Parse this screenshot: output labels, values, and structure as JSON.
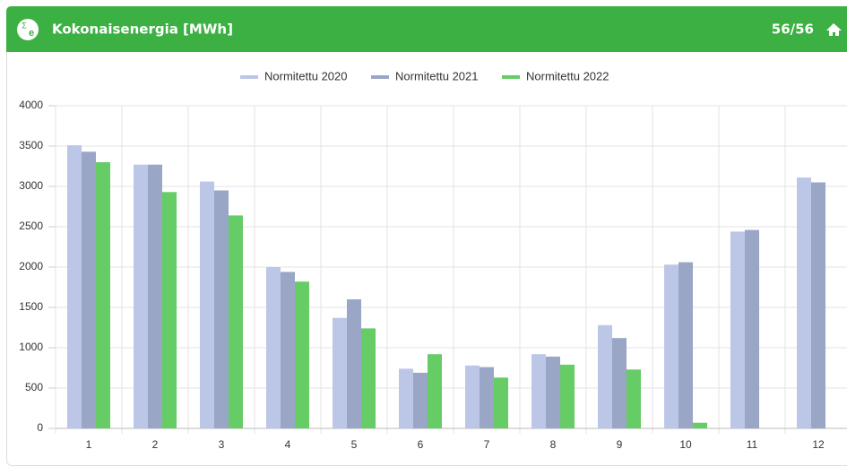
{
  "header": {
    "icon": {
      "symbol": "Σ",
      "sub": "e"
    },
    "title": "Kokonaisenergia [MWh]",
    "page": "56/56"
  },
  "chart_data": {
    "type": "bar",
    "categories": [
      "1",
      "2",
      "3",
      "4",
      "5",
      "6",
      "7",
      "8",
      "9",
      "10",
      "11",
      "12"
    ],
    "series": [
      {
        "name": "Normitettu 2020",
        "color": "#bcc6e6",
        "values": [
          3510,
          3270,
          3060,
          2000,
          1370,
          740,
          780,
          920,
          1280,
          2030,
          2440,
          3110
        ]
      },
      {
        "name": "Normitettu 2021",
        "color": "#9aa6c6",
        "values": [
          3430,
          3270,
          2950,
          1940,
          1600,
          690,
          760,
          890,
          1120,
          2060,
          2460,
          3050
        ]
      },
      {
        "name": "Normitettu 2022",
        "color": "#66cc66",
        "values": [
          3300,
          2930,
          2640,
          1820,
          1240,
          920,
          630,
          790,
          730,
          70,
          null,
          null
        ]
      }
    ],
    "ylim": [
      0,
      4000
    ],
    "yticks": [
      0,
      500,
      1000,
      1500,
      2000,
      2500,
      3000,
      3500,
      4000
    ],
    "grid": true,
    "legend": "top"
  }
}
